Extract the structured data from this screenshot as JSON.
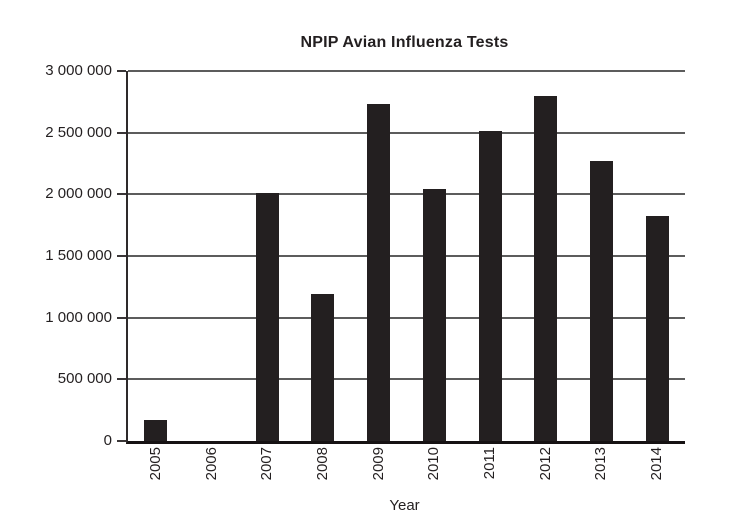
{
  "chart_data": {
    "type": "bar",
    "title": "NPIP Avian Influenza Tests",
    "xlabel": "Year",
    "ylabel": "",
    "categories": [
      "2005",
      "2006",
      "2007",
      "2008",
      "2009",
      "2010",
      "2011",
      "2012",
      "2013",
      "2014"
    ],
    "values": [
      170000,
      0,
      2010000,
      1190000,
      2730000,
      2045000,
      2515000,
      2795000,
      2270000,
      1825000
    ],
    "ylim": [
      0,
      3000000
    ],
    "ytick_values": [
      0,
      500000,
      1000000,
      1500000,
      2000000,
      2500000,
      3000000
    ],
    "ytick_labels": [
      "0",
      "500 000",
      "1 000 000",
      "1 500 000",
      "2 000 000",
      "2 500 000",
      "3 000 000"
    ],
    "grid": true,
    "legend_position": "none",
    "colors": {
      "bar": "#231f20",
      "gridline": "#5c5c5c",
      "axis": "#2e2a2b",
      "text": "#231f20",
      "background": "#ffffff"
    }
  }
}
